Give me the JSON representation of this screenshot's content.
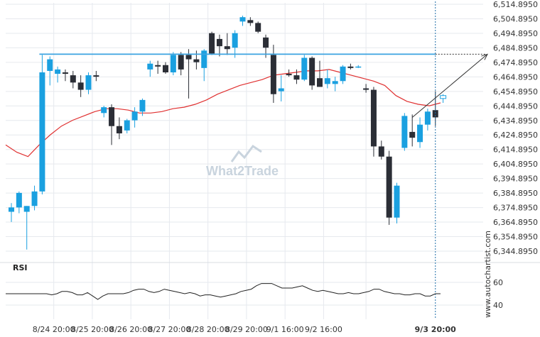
{
  "chart_data": {
    "type": "candlestick",
    "y_ticks": [
      "6,514.8950",
      "6,504.8950",
      "6,494.8950",
      "6,484.8950",
      "6,474.8950",
      "6,464.8950",
      "6,454.8950",
      "6,444.8950",
      "6,434.8950",
      "6,424.8950",
      "6,414.8950",
      "6,404.8950",
      "6,394.8950",
      "6,384.8950",
      "6,374.8950",
      "6,364.8950",
      "6,354.8950",
      "6,344.8950"
    ],
    "ylim": [
      6342.0,
      6517.0
    ],
    "x_ticks": [
      "8/24 20:00",
      "8/25 20:00",
      "8/26 20:00",
      "8/27 20:00",
      "8/28 20:00",
      "8/29 20:00",
      "9/1 16:00",
      "9/2 16:00",
      "9/3 20:00"
    ],
    "x_tick_index": [
      5.5,
      10.5,
      15.5,
      20.5,
      25.5,
      30.5,
      35.5,
      40.5,
      46
    ],
    "candles": [
      {
        "o": 6372,
        "h": 6378,
        "l": 6365,
        "c": 6375
      },
      {
        "o": 6375,
        "h": 6386,
        "l": 6371,
        "c": 6385
      },
      {
        "o": 6372,
        "h": 6376,
        "l": 6346,
        "c": 6376
      },
      {
        "o": 6376,
        "h": 6390,
        "l": 6373,
        "c": 6386
      },
      {
        "o": 6386,
        "h": 6480,
        "l": 6384,
        "c": 6468
      },
      {
        "o": 6469,
        "h": 6479,
        "l": 6459,
        "c": 6477
      },
      {
        "o": 6467,
        "h": 6472,
        "l": 6461,
        "c": 6470
      },
      {
        "o": 6468,
        "h": 6470,
        "l": 6462,
        "c": 6467
      },
      {
        "o": 6466,
        "h": 6469,
        "l": 6457,
        "c": 6461
      },
      {
        "o": 6461,
        "h": 6466,
        "l": 6451,
        "c": 6456
      },
      {
        "o": 6456,
        "h": 6468,
        "l": 6453,
        "c": 6466
      },
      {
        "o": 6466,
        "h": 6469,
        "l": 6462,
        "c": 6465
      },
      {
        "o": 6440,
        "h": 6445,
        "l": 6437,
        "c": 6444
      },
      {
        "o": 6444,
        "h": 6446,
        "l": 6418,
        "c": 6431
      },
      {
        "o": 6431,
        "h": 6437,
        "l": 6422,
        "c": 6426
      },
      {
        "o": 6428,
        "h": 6436,
        "l": 6426,
        "c": 6435
      },
      {
        "o": 6435,
        "h": 6444,
        "l": 6430,
        "c": 6441
      },
      {
        "o": 6441,
        "h": 6450,
        "l": 6438,
        "c": 6449
      },
      {
        "o": 6470,
        "h": 6476,
        "l": 6465,
        "c": 6474
      },
      {
        "o": 6473,
        "h": 6476,
        "l": 6467,
        "c": 6472
      },
      {
        "o": 6473,
        "h": 6475,
        "l": 6467,
        "c": 6468
      },
      {
        "o": 6468,
        "h": 6482,
        "l": 6466,
        "c": 6480
      },
      {
        "o": 6480,
        "h": 6482,
        "l": 6466,
        "c": 6470
      },
      {
        "o": 6480,
        "h": 6484,
        "l": 6450,
        "c": 6477
      },
      {
        "o": 6477,
        "h": 6483,
        "l": 6470,
        "c": 6475
      },
      {
        "o": 6471,
        "h": 6484,
        "l": 6462,
        "c": 6483
      },
      {
        "o": 6495,
        "h": 6496,
        "l": 6480,
        "c": 6481
      },
      {
        "o": 6491,
        "h": 6494,
        "l": 6479,
        "c": 6486
      },
      {
        "o": 6486,
        "h": 6495,
        "l": 6480,
        "c": 6484
      },
      {
        "o": 6485,
        "h": 6497,
        "l": 6478,
        "c": 6495
      },
      {
        "o": 6503,
        "h": 6507,
        "l": 6500,
        "c": 6506
      },
      {
        "o": 6504,
        "h": 6506,
        "l": 6500,
        "c": 6502
      },
      {
        "o": 6502,
        "h": 6503,
        "l": 6495,
        "c": 6496
      },
      {
        "o": 6492,
        "h": 6494,
        "l": 6478,
        "c": 6485
      },
      {
        "o": 6480,
        "h": 6487,
        "l": 6447,
        "c": 6453
      },
      {
        "o": 6455,
        "h": 6466,
        "l": 6448,
        "c": 6457
      },
      {
        "o": 6467,
        "h": 6470,
        "l": 6465,
        "c": 6466
      },
      {
        "o": 6466,
        "h": 6470,
        "l": 6460,
        "c": 6463
      },
      {
        "o": 6463,
        "h": 6480,
        "l": 6462,
        "c": 6478
      },
      {
        "o": 6478,
        "h": 6479,
        "l": 6456,
        "c": 6459
      },
      {
        "o": 6464,
        "h": 6476,
        "l": 6458,
        "c": 6458
      },
      {
        "o": 6460,
        "h": 6470,
        "l": 6457,
        "c": 6464
      },
      {
        "o": 6460,
        "h": 6465,
        "l": 6455,
        "c": 6462
      },
      {
        "o": 6462,
        "h": 6473,
        "l": 6460,
        "c": 6472
      },
      {
        "o": 6472,
        "h": 6474,
        "l": 6470,
        "c": 6471
      },
      {
        "o": 6472,
        "h": 6473,
        "l": 6471,
        "c": 6472
      },
      {
        "o": 6457,
        "h": 6460,
        "l": 6454,
        "c": 6456
      },
      {
        "o": 6456,
        "h": 6458,
        "l": 6410,
        "c": 6417
      },
      {
        "o": 6417,
        "h": 6421,
        "l": 6408,
        "c": 6410
      },
      {
        "o": 6410,
        "h": 6414,
        "l": 6363,
        "c": 6368
      },
      {
        "o": 6368,
        "h": 6392,
        "l": 6364,
        "c": 6390
      },
      {
        "o": 6416,
        "h": 6440,
        "l": 6414,
        "c": 6438
      },
      {
        "o": 6427,
        "h": 6439,
        "l": 6417,
        "c": 6423
      },
      {
        "o": 6420,
        "h": 6437,
        "l": 6416,
        "c": 6432
      },
      {
        "o": 6432,
        "h": 6443,
        "l": 6428,
        "c": 6441
      },
      {
        "o": 6442,
        "h": 6455,
        "l": 6431,
        "c": 6437
      },
      {
        "o": 6450,
        "h": 6453,
        "l": 6447,
        "c": 6452
      }
    ],
    "ma": [
      6418,
      6413,
      6410,
      6418,
      6425,
      6431,
      6435,
      6438,
      6441,
      6443,
      6443,
      6442,
      6440,
      6440,
      6441,
      6443,
      6444,
      6446,
      6449,
      6453,
      6456,
      6459,
      6461,
      6463,
      6466,
      6467,
      6468,
      6469,
      6469,
      6470,
      6468,
      6466,
      6464,
      6462,
      6459,
      6452,
      6448,
      6446,
      6445,
      6447
    ],
    "level": 6480.5,
    "projection": {
      "from_index": 52,
      "from_value": 6437,
      "to_value": 6480.5
    },
    "rsi": {
      "label": "RSI",
      "y_ticks": [
        "60",
        "40"
      ],
      "ylim": [
        20,
        80
      ],
      "values": [
        50,
        50,
        50,
        50,
        50,
        50,
        50,
        50,
        50,
        49,
        50,
        52,
        52,
        51,
        49,
        49,
        51,
        48,
        45,
        48,
        50,
        50,
        50,
        50,
        51,
        53,
        54,
        54,
        52,
        51,
        52,
        54,
        53,
        52,
        51,
        50,
        51,
        50,
        48,
        49,
        49,
        48,
        47,
        48,
        49,
        50,
        52,
        53,
        54,
        57,
        59,
        59,
        59,
        57,
        55,
        55,
        55,
        56,
        57,
        55,
        53,
        52,
        53,
        52,
        51,
        50,
        50,
        51,
        50,
        50,
        51,
        52,
        54,
        54,
        52,
        51,
        50,
        50,
        49,
        49,
        50,
        50,
        48,
        48,
        50,
        50
      ]
    }
  },
  "watermark": "What2Trade",
  "credit": "www.autochartist.com",
  "colors": {
    "bull": "#1aa0e0",
    "bear": "#2b2e36",
    "ma": "#e03131",
    "level": "#3ba3e0",
    "grid": "#e6e9ee",
    "rsi": "#222222"
  }
}
